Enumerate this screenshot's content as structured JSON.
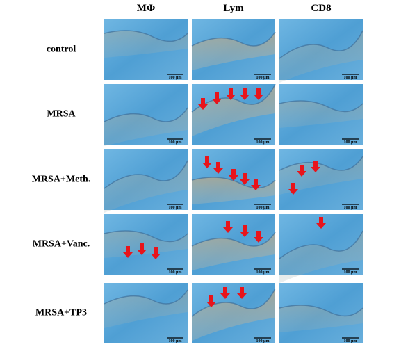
{
  "header": {
    "columns": [
      "MΦ",
      "Lym",
      "CD8"
    ]
  },
  "rows": [
    {
      "label": "control",
      "cells": [
        {
          "scale_bar": "100 µm"
        },
        {
          "scale_bar": "100 µm"
        },
        {
          "scale_bar": "100 µm"
        }
      ]
    },
    {
      "label": "MRSA",
      "cells": [
        {
          "scale_bar": "100 µm"
        },
        {
          "scale_bar": "100 µm"
        },
        {
          "scale_bar": "100 µm"
        }
      ]
    },
    {
      "label": "MRSA+Meth.",
      "cells": [
        {
          "scale_bar": "100 µm"
        },
        {
          "scale_bar": "100 µm"
        },
        {
          "scale_bar": "100 µm"
        }
      ]
    },
    {
      "label": "MRSA+Vanc.",
      "cells": [
        {
          "scale_bar": "100 µm"
        },
        {
          "scale_bar": "100 µm"
        },
        {
          "scale_bar": "100 µm"
        }
      ]
    },
    {
      "label": "MRSA+TP3",
      "cells": [
        {
          "scale_bar": "100 µm"
        },
        {
          "scale_bar": "100 µm"
        },
        {
          "scale_bar": "100 µm"
        }
      ]
    }
  ]
}
